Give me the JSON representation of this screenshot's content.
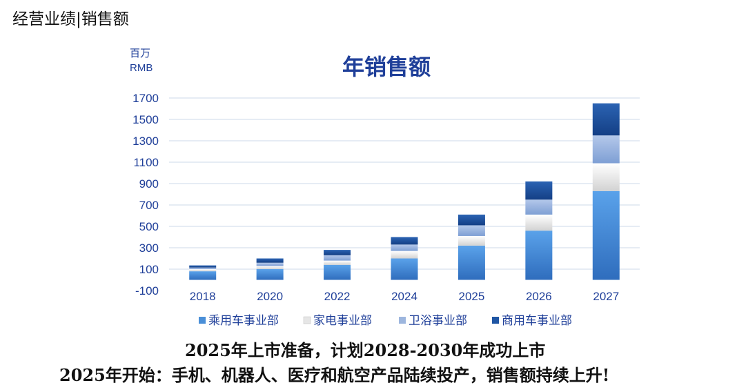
{
  "header": {
    "text": "经营业绩|销售额"
  },
  "chart_data": {
    "type": "bar",
    "stacked": true,
    "title": "年销售额",
    "unit_line1": "百万",
    "unit_line2": "RMB",
    "categories": [
      "2018",
      "2020",
      "2022",
      "2024",
      "2025",
      "2026",
      "2027"
    ],
    "series": [
      {
        "name": "乘用车事业部",
        "color": "#4a8fd8",
        "values": [
          80,
          100,
          140,
          200,
          320,
          460,
          830
        ]
      },
      {
        "name": "家电事业部",
        "color": "#e6e6e6",
        "values": [
          20,
          30,
          40,
          70,
          90,
          150,
          260
        ]
      },
      {
        "name": "卫浴事业部",
        "color": "#9db6de",
        "values": [
          15,
          30,
          50,
          60,
          100,
          140,
          260
        ]
      },
      {
        "name": "商用车事业部",
        "color": "#1f56a4",
        "values": [
          20,
          40,
          50,
          70,
          100,
          170,
          300
        ]
      }
    ],
    "yticks": [
      "1700",
      "1500",
      "1300",
      "1100",
      "900",
      "700",
      "500",
      "300",
      "100",
      "-100"
    ],
    "ylim": [
      -100,
      1700
    ],
    "grid": true,
    "legend_position": "bottom"
  },
  "captions": {
    "line1": "2025年上市准备，计划2028-2030年成功上市",
    "line2": "2025年开始：手机、机器人、医疗和航空产品陆续投产，销售额持续上升!"
  }
}
